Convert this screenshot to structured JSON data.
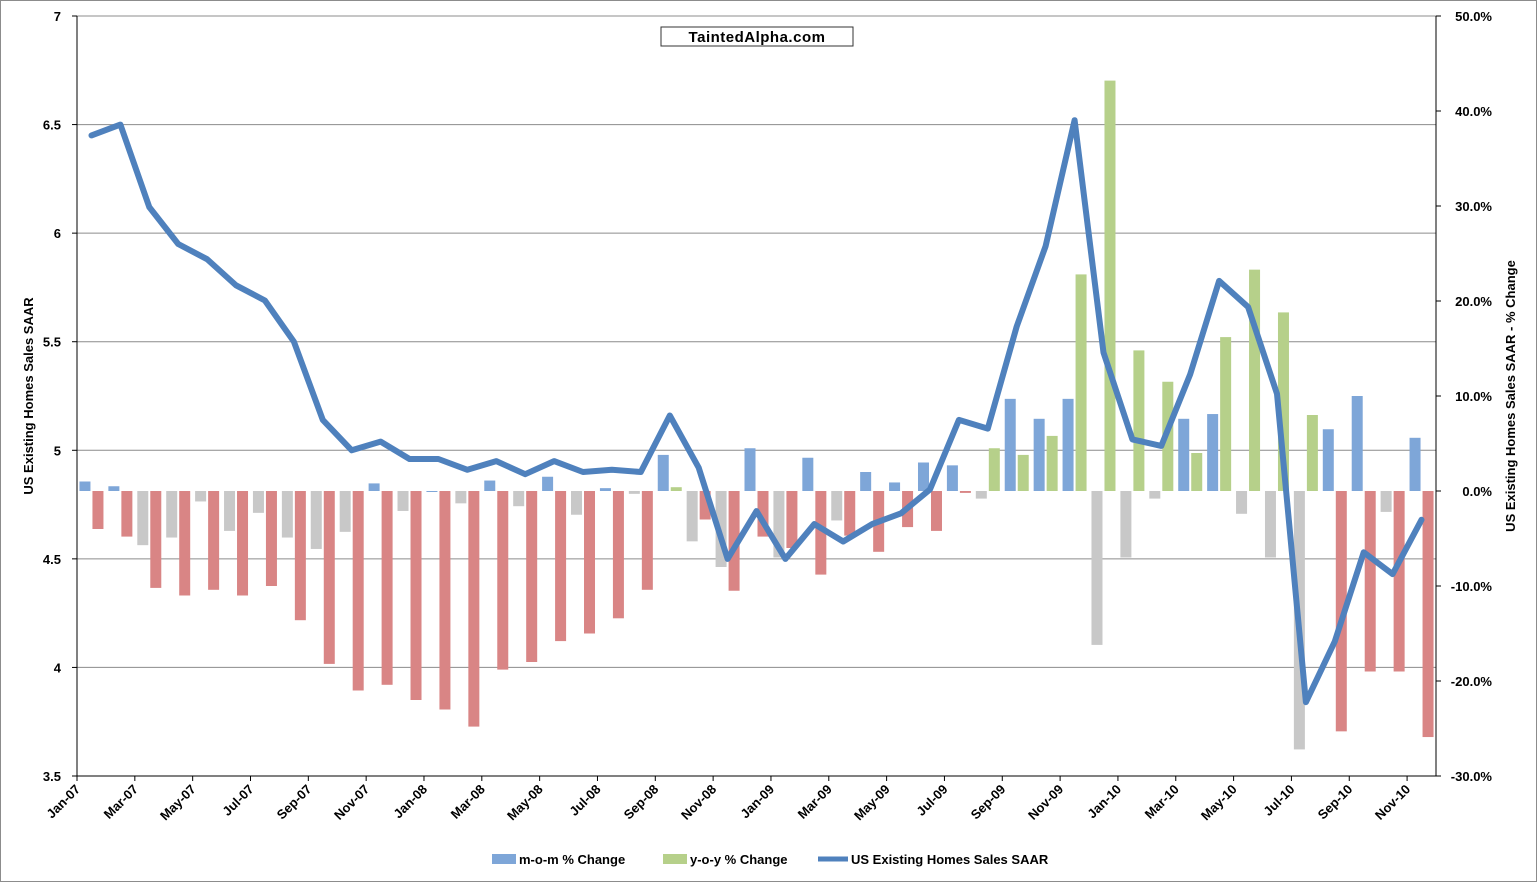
{
  "chart_data": {
    "type": "bar-line-combo",
    "watermark": "TaintedAlpha.com",
    "ylabel_left": "US Existing Homes Sales SAAR",
    "ylabel_right": "US Existing Homes Sales SAAR - % Change",
    "ylim_left": [
      3.5,
      7
    ],
    "ylim_right": [
      -30,
      50
    ],
    "left_ticks": [
      3.5,
      4,
      4.5,
      5,
      5.5,
      6,
      6.5,
      7
    ],
    "left_tick_labels": [
      "3.5",
      "4",
      "4.5",
      "5",
      "5.5",
      "6",
      "6.5",
      "7"
    ],
    "right_ticks": [
      -30,
      -20,
      -10,
      0,
      10,
      20,
      30,
      40,
      50
    ],
    "right_tick_labels": [
      "-30.0%",
      "-20.0%",
      "-10.0%",
      "0.0%",
      "10.0%",
      "20.0%",
      "30.0%",
      "40.0%",
      "50.0%"
    ],
    "grid": true,
    "legend_position": "bottom",
    "categories": [
      "Jan-07",
      "Feb-07",
      "Mar-07",
      "Apr-07",
      "May-07",
      "Jun-07",
      "Jul-07",
      "Aug-07",
      "Sep-07",
      "Oct-07",
      "Nov-07",
      "Dec-07",
      "Jan-08",
      "Feb-08",
      "Mar-08",
      "Apr-08",
      "May-08",
      "Jun-08",
      "Jul-08",
      "Aug-08",
      "Sep-08",
      "Oct-08",
      "Nov-08",
      "Dec-08",
      "Jan-09",
      "Feb-09",
      "Mar-09",
      "Apr-09",
      "May-09",
      "Jun-09",
      "Jul-09",
      "Aug-09",
      "Sep-09",
      "Oct-09",
      "Nov-09",
      "Dec-09",
      "Jan-10",
      "Feb-10",
      "Mar-10",
      "Apr-10",
      "May-10",
      "Jun-10",
      "Jul-10",
      "Aug-10",
      "Sep-10",
      "Oct-10",
      "Nov-10"
    ],
    "x_tick_labels": [
      "Jan-07",
      "Mar-07",
      "May-07",
      "Jul-07",
      "Sep-07",
      "Nov-07",
      "Jan-08",
      "Mar-08",
      "May-08",
      "Jul-08",
      "Sep-08",
      "Nov-08",
      "Jan-09",
      "Mar-09",
      "May-09",
      "Jul-09",
      "Sep-09",
      "Nov-09",
      "Jan-10",
      "Mar-10",
      "May-10",
      "Jul-10",
      "Sep-10",
      "Nov-10"
    ],
    "series": [
      {
        "name": "m-o-m % Change",
        "kind": "bar",
        "axis": "right",
        "color_positive": "#7ea6d8",
        "color_negative": "#c8c8c8",
        "values": [
          1.0,
          0.5,
          -5.7,
          -4.9,
          -1.1,
          -4.2,
          -2.3,
          -4.9,
          -6.1,
          -4.3,
          0.8,
          -2.1,
          0.0,
          -1.3,
          1.1,
          -1.6,
          1.5,
          -2.5,
          0.3,
          -0.3,
          3.8,
          -5.3,
          -8.0,
          4.5,
          -7.0,
          3.5,
          -3.1,
          2.0,
          0.9,
          3.0,
          2.7,
          -0.8,
          9.7,
          7.6,
          9.7,
          -16.2,
          -7.0,
          -0.8,
          7.6,
          8.1,
          -2.4,
          -7.0,
          -27.2,
          6.5,
          10.0,
          -2.2,
          5.6
        ]
      },
      {
        "name": "y-o-y % Change",
        "kind": "bar",
        "axis": "right",
        "color_positive": "#b6d08a",
        "color_negative": "#d98585",
        "values": [
          -4.0,
          -4.8,
          -10.2,
          -11.0,
          -10.4,
          -11.0,
          -10.0,
          -13.6,
          -18.2,
          -21.0,
          -20.4,
          -22.0,
          -23.0,
          -24.8,
          -18.8,
          -18.0,
          -15.8,
          -15.0,
          -13.4,
          -10.4,
          0.4,
          -3.0,
          -10.5,
          -4.8,
          -6.0,
          -8.8,
          -4.7,
          -6.4,
          -3.8,
          -4.2,
          -0.2,
          4.5,
          3.8,
          5.8,
          22.8,
          43.2,
          14.8,
          11.5,
          4.0,
          16.2,
          23.3,
          18.8,
          8.0,
          -25.3,
          -19.0,
          -19.0,
          -25.9
        ]
      },
      {
        "name": "US Existing Homes Sales SAAR",
        "kind": "line",
        "axis": "left",
        "color": "#4f81bd",
        "values": [
          6.45,
          6.5,
          6.12,
          5.95,
          5.88,
          5.76,
          5.69,
          5.5,
          5.14,
          5.0,
          5.04,
          4.96,
          4.96,
          4.91,
          4.95,
          4.89,
          4.95,
          4.9,
          4.91,
          4.9,
          5.16,
          4.92,
          4.5,
          4.72,
          4.5,
          4.66,
          4.58,
          4.66,
          4.71,
          4.82,
          5.14,
          5.1,
          5.57,
          5.94,
          6.52,
          5.45,
          5.05,
          5.02,
          5.35,
          5.78,
          5.66,
          5.26,
          3.84,
          4.12,
          4.53,
          4.43,
          4.68
        ]
      }
    ]
  }
}
